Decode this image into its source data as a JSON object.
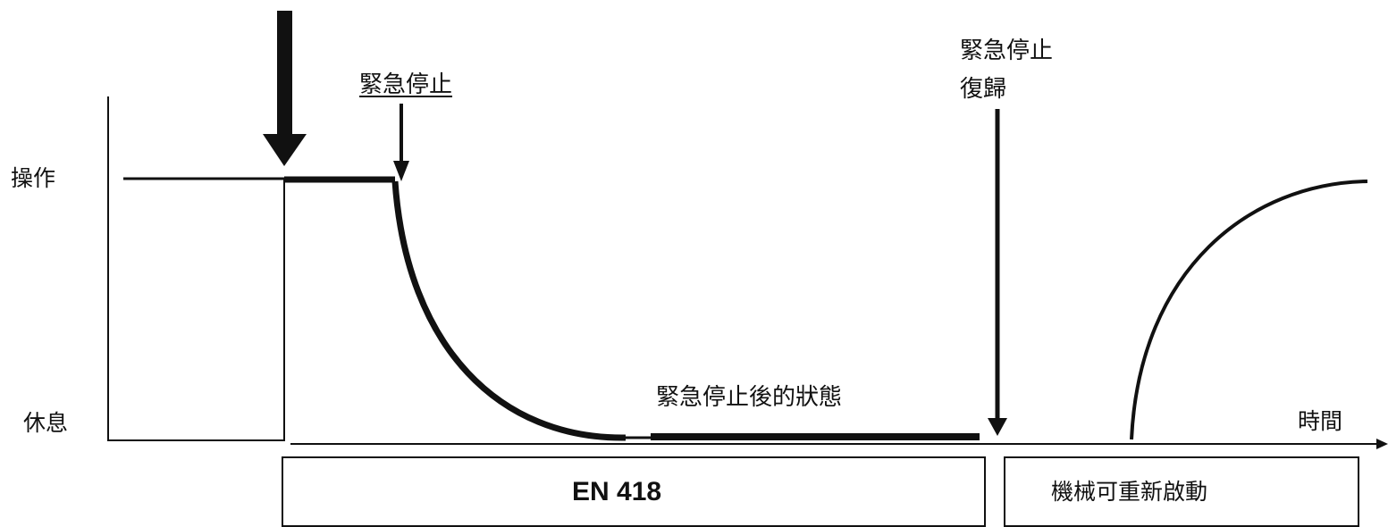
{
  "labels": {
    "operation": "操作",
    "rest": "休息",
    "time": "時間",
    "emergency_stop": "緊急停止",
    "emergency_stop_reset_line1": "緊急停止",
    "emergency_stop_reset_line2": "復歸",
    "after_stop_state": "緊急停止後的狀態",
    "standard_box": "EN 418",
    "restart_box": "機械可重新啟動"
  },
  "colors": {
    "line": "#111111",
    "background": "#ffffff"
  }
}
